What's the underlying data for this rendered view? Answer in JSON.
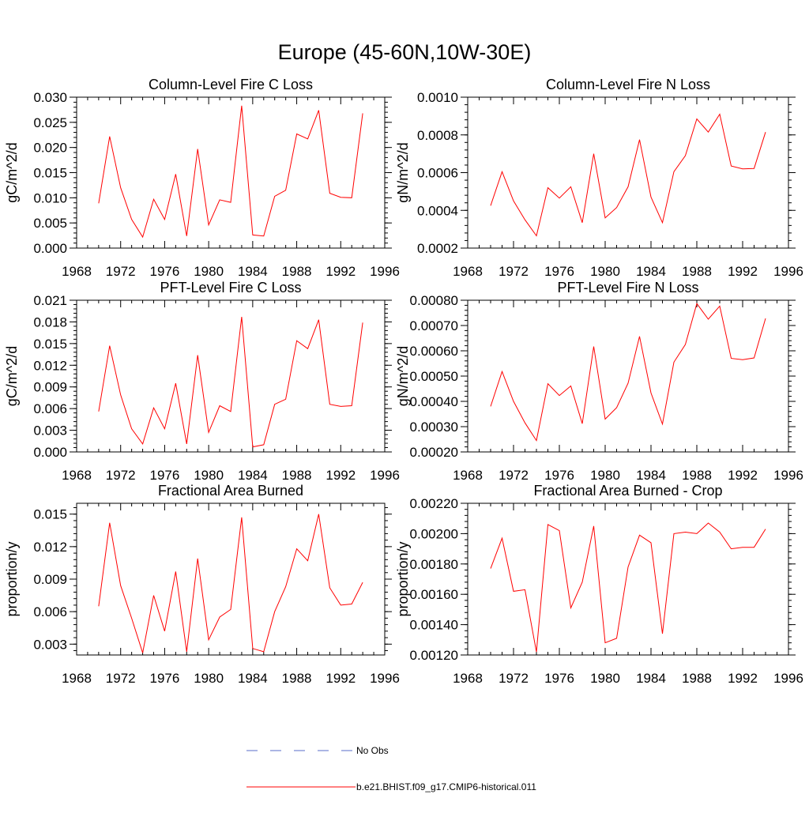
{
  "page_title": "Europe (45-60N,10W-30E)",
  "legend": {
    "obs_label": "No Obs",
    "model_label": "b.e21.BHIST.f09_g17.CMIP6-historical.011",
    "obs_color": "#5a6cc8",
    "model_color": "#ff0000"
  },
  "chart_data": [
    {
      "type": "line",
      "title": "Column-Level Fire C Loss",
      "ylabel": "gC/m^2/d",
      "xlim": [
        1968,
        1996
      ],
      "xticks": [
        1968,
        1972,
        1976,
        1980,
        1984,
        1988,
        1992,
        1996
      ],
      "xticklabels": [
        "1968",
        "1972",
        "1976",
        "1980",
        "1984",
        "1988",
        "1992",
        "1996"
      ],
      "ylim": [
        0,
        0.03
      ],
      "yticks": [
        0,
        0.005,
        0.01,
        0.015,
        0.02,
        0.025,
        0.03
      ],
      "yticklabels": [
        "0.000",
        "0.005",
        "0.010",
        "0.015",
        "0.020",
        "0.025",
        "0.030"
      ],
      "x": [
        1970,
        1971,
        1972,
        1973,
        1974,
        1975,
        1976,
        1977,
        1978,
        1979,
        1980,
        1981,
        1982,
        1983,
        1984,
        1985,
        1986,
        1987,
        1988,
        1989,
        1990,
        1991,
        1992,
        1993,
        1994
      ],
      "values": [
        0.0089,
        0.0222,
        0.012,
        0.0057,
        0.0022,
        0.0097,
        0.0057,
        0.0147,
        0.0024,
        0.0197,
        0.0046,
        0.0096,
        0.0091,
        0.0283,
        0.0026,
        0.0024,
        0.0103,
        0.0115,
        0.0227,
        0.0217,
        0.0274,
        0.0109,
        0.0101,
        0.01,
        0.0268
      ]
    },
    {
      "type": "line",
      "title": "Column-Level Fire N Loss",
      "ylabel": "gN/m^2/d",
      "xlim": [
        1968,
        1996
      ],
      "xticks": [
        1968,
        1972,
        1976,
        1980,
        1984,
        1988,
        1992,
        1996
      ],
      "xticklabels": [
        "1968",
        "1972",
        "1976",
        "1980",
        "1984",
        "1988",
        "1992",
        "1996"
      ],
      "ylim": [
        0.0002,
        0.001
      ],
      "yticks": [
        0.0002,
        0.0004,
        0.0006,
        0.0008,
        0.001
      ],
      "yticklabels": [
        "0.0002",
        "0.0004",
        "0.0006",
        "0.0008",
        "0.0010"
      ],
      "x": [
        1970,
        1971,
        1972,
        1973,
        1974,
        1975,
        1976,
        1977,
        1978,
        1979,
        1980,
        1981,
        1982,
        1983,
        1984,
        1985,
        1986,
        1987,
        1988,
        1989,
        1990,
        1991,
        1992,
        1993,
        1994
      ],
      "values": [
        0.000425,
        0.000605,
        0.00045,
        0.00035,
        0.000265,
        0.00052,
        0.000465,
        0.000525,
        0.000335,
        0.0007,
        0.00036,
        0.000415,
        0.000525,
        0.000775,
        0.00047,
        0.000335,
        0.000605,
        0.00069,
        0.000885,
        0.000815,
        0.00091,
        0.000635,
        0.00062,
        0.000622,
        0.000815
      ]
    },
    {
      "type": "line",
      "title": "PFT-Level Fire C Loss",
      "ylabel": "gC/m^2/d",
      "xlim": [
        1968,
        1996
      ],
      "xticks": [
        1968,
        1972,
        1976,
        1980,
        1984,
        1988,
        1992,
        1996
      ],
      "xticklabels": [
        "1968",
        "1972",
        "1976",
        "1980",
        "1984",
        "1988",
        "1992",
        "1996"
      ],
      "ylim": [
        0,
        0.021
      ],
      "yticks": [
        0,
        0.003,
        0.006,
        0.009,
        0.012,
        0.015,
        0.018,
        0.021
      ],
      "yticklabels": [
        "0.000",
        "0.003",
        "0.006",
        "0.009",
        "0.012",
        "0.015",
        "0.018",
        "0.021"
      ],
      "x": [
        1970,
        1971,
        1972,
        1973,
        1974,
        1975,
        1976,
        1977,
        1978,
        1979,
        1980,
        1981,
        1982,
        1983,
        1984,
        1985,
        1986,
        1987,
        1988,
        1989,
        1990,
        1991,
        1992,
        1993,
        1994
      ],
      "values": [
        0.0056,
        0.0147,
        0.0079,
        0.0032,
        0.0011,
        0.0061,
        0.0032,
        0.0095,
        0.0011,
        0.0134,
        0.0027,
        0.0064,
        0.0056,
        0.0187,
        0.0007,
        0.001,
        0.0066,
        0.0073,
        0.0154,
        0.0143,
        0.0183,
        0.0066,
        0.0063,
        0.0064,
        0.0179
      ]
    },
    {
      "type": "line",
      "title": "PFT-Level Fire N Loss",
      "ylabel": "gN/m^2/d",
      "xlim": [
        1968,
        1996
      ],
      "xticks": [
        1968,
        1972,
        1976,
        1980,
        1984,
        1988,
        1992,
        1996
      ],
      "xticklabels": [
        "1968",
        "1972",
        "1976",
        "1980",
        "1984",
        "1988",
        "1992",
        "1996"
      ],
      "ylim": [
        0.0002,
        0.0008
      ],
      "yticks": [
        0.0002,
        0.0003,
        0.0004,
        0.0005,
        0.0006,
        0.0007,
        0.0008
      ],
      "yticklabels": [
        "0.00020",
        "0.00030",
        "0.00040",
        "0.00050",
        "0.00060",
        "0.00070",
        "0.00080"
      ],
      "x": [
        1970,
        1971,
        1972,
        1973,
        1974,
        1975,
        1976,
        1977,
        1978,
        1979,
        1980,
        1981,
        1982,
        1983,
        1984,
        1985,
        1986,
        1987,
        1988,
        1989,
        1990,
        1991,
        1992,
        1993,
        1994
      ],
      "values": [
        0.00038,
        0.000518,
        0.0004,
        0.000315,
        0.000245,
        0.00047,
        0.000423,
        0.000461,
        0.000312,
        0.000617,
        0.00033,
        0.000375,
        0.000472,
        0.000657,
        0.000433,
        0.00031,
        0.000555,
        0.000625,
        0.000787,
        0.000725,
        0.000777,
        0.00057,
        0.000565,
        0.000572,
        0.000728
      ]
    },
    {
      "type": "line",
      "title": "Fractional Area Burned",
      "ylabel": "proportion/y",
      "xlim": [
        1968,
        1996
      ],
      "xticks": [
        1968,
        1972,
        1976,
        1980,
        1984,
        1988,
        1992,
        1996
      ],
      "xticklabels": [
        "1968",
        "1972",
        "1976",
        "1980",
        "1984",
        "1988",
        "1992",
        "1996"
      ],
      "ylim": [
        0.002,
        0.016
      ],
      "yticks": [
        0.003,
        0.006,
        0.009,
        0.012,
        0.015
      ],
      "yticklabels": [
        "0.003",
        "0.006",
        "0.009",
        "0.012",
        "0.015"
      ],
      "x": [
        1970,
        1971,
        1972,
        1973,
        1974,
        1975,
        1976,
        1977,
        1978,
        1979,
        1980,
        1981,
        1982,
        1983,
        1984,
        1985,
        1986,
        1987,
        1988,
        1989,
        1990,
        1991,
        1992,
        1993,
        1994
      ],
      "values": [
        0.0065,
        0.0142,
        0.0084,
        0.0054,
        0.0022,
        0.0075,
        0.0042,
        0.0097,
        0.0023,
        0.0109,
        0.0034,
        0.0055,
        0.0062,
        0.0147,
        0.0026,
        0.0023,
        0.006,
        0.0083,
        0.0118,
        0.0107,
        0.015,
        0.0082,
        0.0066,
        0.0067,
        0.0087
      ]
    },
    {
      "type": "line",
      "title": "Fractional Area Burned - Crop",
      "ylabel": "proportion/y",
      "xlim": [
        1968,
        1996
      ],
      "xticks": [
        1968,
        1972,
        1976,
        1980,
        1984,
        1988,
        1992,
        1996
      ],
      "xticklabels": [
        "1968",
        "1972",
        "1976",
        "1980",
        "1984",
        "1988",
        "1992",
        "1996"
      ],
      "ylim": [
        0.0012,
        0.0022
      ],
      "yticks": [
        0.0012,
        0.0014,
        0.0016,
        0.0018,
        0.002,
        0.0022
      ],
      "yticklabels": [
        "0.00120",
        "0.00140",
        "0.00160",
        "0.00180",
        "0.00200",
        "0.00220"
      ],
      "x": [
        1970,
        1971,
        1972,
        1973,
        1974,
        1975,
        1976,
        1977,
        1978,
        1979,
        1980,
        1981,
        1982,
        1983,
        1984,
        1985,
        1986,
        1987,
        1988,
        1989,
        1990,
        1991,
        1992,
        1993,
        1994
      ],
      "values": [
        0.00177,
        0.00197,
        0.00162,
        0.00163,
        0.00122,
        0.00206,
        0.00202,
        0.00151,
        0.00168,
        0.00205,
        0.00128,
        0.00131,
        0.00178,
        0.00199,
        0.00194,
        0.00134,
        0.002,
        0.00201,
        0.002,
        0.00207,
        0.00201,
        0.0019,
        0.00191,
        0.00191,
        0.00203
      ]
    }
  ]
}
